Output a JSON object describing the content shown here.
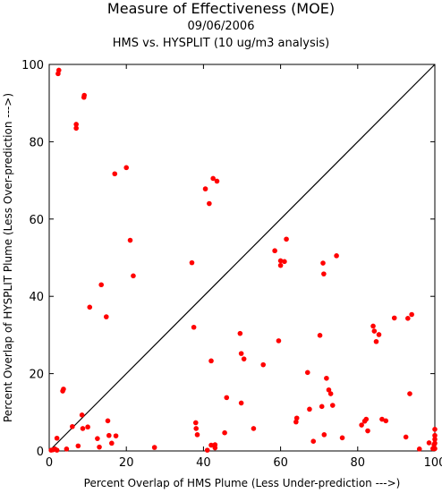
{
  "chart_data": {
    "type": "scatter",
    "title": "Measure of Effectiveness (MOE)",
    "subtitle": "09/06/2006",
    "subtitle2": "HMS vs. HYSPLIT  (10 ug/m3 analysis)",
    "xlabel": "Percent Overlap of HMS Plume (Less Under-prediction --->)",
    "ylabel": "Percent Overlap of HYSPLIT Plume (Less Over-prediction --->)",
    "xlim": [
      0,
      100
    ],
    "ylim": [
      0,
      100
    ],
    "x_ticks": [
      0,
      20,
      40,
      60,
      80,
      100
    ],
    "y_ticks": [
      0,
      20,
      40,
      60,
      80,
      100
    ],
    "grid": false,
    "legend": "none",
    "marker_color": "#ff0000",
    "reference_line": "diagonal y = x",
    "points": [
      {
        "x": 0.5,
        "y": 0.2
      },
      {
        "x": 1,
        "y": 0.3
      },
      {
        "x": 1.5,
        "y": 0.5
      },
      {
        "x": 2,
        "y": 0.2
      },
      {
        "x": 2,
        "y": 3.3
      },
      {
        "x": 2.3,
        "y": 97.6
      },
      {
        "x": 2.5,
        "y": 98.5
      },
      {
        "x": 3.5,
        "y": 15.5
      },
      {
        "x": 3.7,
        "y": 16
      },
      {
        "x": 4.5,
        "y": 0.5
      },
      {
        "x": 6,
        "y": 6.3
      },
      {
        "x": 7,
        "y": 83.5
      },
      {
        "x": 7,
        "y": 84.5
      },
      {
        "x": 7.5,
        "y": 1.3
      },
      {
        "x": 8.5,
        "y": 9.3
      },
      {
        "x": 8.7,
        "y": 5.8
      },
      {
        "x": 9,
        "y": 91.5
      },
      {
        "x": 9.1,
        "y": 92
      },
      {
        "x": 10,
        "y": 6.2
      },
      {
        "x": 10.5,
        "y": 37.2
      },
      {
        "x": 12.5,
        "y": 3.2
      },
      {
        "x": 13.5,
        "y": 43
      },
      {
        "x": 13,
        "y": 1
      },
      {
        "x": 14.8,
        "y": 34.7
      },
      {
        "x": 15.2,
        "y": 7.8
      },
      {
        "x": 15.5,
        "y": 4
      },
      {
        "x": 16.2,
        "y": 2
      },
      {
        "x": 17,
        "y": 71.7
      },
      {
        "x": 17.3,
        "y": 3.9
      },
      {
        "x": 20,
        "y": 73.3
      },
      {
        "x": 21,
        "y": 54.5
      },
      {
        "x": 21.8,
        "y": 45.3
      },
      {
        "x": 27.3,
        "y": 0.9
      },
      {
        "x": 37,
        "y": 48.7
      },
      {
        "x": 37.5,
        "y": 32
      },
      {
        "x": 38,
        "y": 7.3
      },
      {
        "x": 38.1,
        "y": 5.8
      },
      {
        "x": 38.4,
        "y": 4.2
      },
      {
        "x": 40.5,
        "y": 67.8
      },
      {
        "x": 41,
        "y": 0.2
      },
      {
        "x": 41.5,
        "y": 64
      },
      {
        "x": 42,
        "y": 1.5
      },
      {
        "x": 42,
        "y": 23.3
      },
      {
        "x": 42.5,
        "y": 70.5
      },
      {
        "x": 43,
        "y": 0.8
      },
      {
        "x": 43,
        "y": 1.6
      },
      {
        "x": 43.5,
        "y": 69.8
      },
      {
        "x": 45.5,
        "y": 4.7
      },
      {
        "x": 46,
        "y": 13.8
      },
      {
        "x": 49.5,
        "y": 30.4
      },
      {
        "x": 49.8,
        "y": 25.2
      },
      {
        "x": 49.8,
        "y": 12.4
      },
      {
        "x": 50.5,
        "y": 23.8
      },
      {
        "x": 53,
        "y": 5.8
      },
      {
        "x": 55.5,
        "y": 22.3
      },
      {
        "x": 58.5,
        "y": 51.8
      },
      {
        "x": 59.5,
        "y": 28.5
      },
      {
        "x": 60,
        "y": 49.2
      },
      {
        "x": 60,
        "y": 48
      },
      {
        "x": 61,
        "y": 49
      },
      {
        "x": 61.5,
        "y": 54.8
      },
      {
        "x": 64,
        "y": 7.5
      },
      {
        "x": 64.2,
        "y": 8.5
      },
      {
        "x": 67,
        "y": 20.3
      },
      {
        "x": 67.5,
        "y": 10.8
      },
      {
        "x": 68.5,
        "y": 2.5
      },
      {
        "x": 70.2,
        "y": 29.9
      },
      {
        "x": 70.7,
        "y": 11.5
      },
      {
        "x": 71,
        "y": 48.6
      },
      {
        "x": 71.2,
        "y": 45.8
      },
      {
        "x": 71.3,
        "y": 4.2
      },
      {
        "x": 71.9,
        "y": 18.8
      },
      {
        "x": 72.5,
        "y": 15.8
      },
      {
        "x": 73,
        "y": 14.8
      },
      {
        "x": 73.5,
        "y": 11.8
      },
      {
        "x": 74.5,
        "y": 50.5
      },
      {
        "x": 76,
        "y": 3.4
      },
      {
        "x": 81,
        "y": 6.7
      },
      {
        "x": 81.8,
        "y": 7.7
      },
      {
        "x": 82.2,
        "y": 8.2
      },
      {
        "x": 82.6,
        "y": 5.2
      },
      {
        "x": 84,
        "y": 32.3
      },
      {
        "x": 84.3,
        "y": 31
      },
      {
        "x": 84.8,
        "y": 28.3
      },
      {
        "x": 85.5,
        "y": 30.1
      },
      {
        "x": 86.3,
        "y": 8.2
      },
      {
        "x": 87.3,
        "y": 7.8
      },
      {
        "x": 89.5,
        "y": 34.4
      },
      {
        "x": 92.5,
        "y": 3.6
      },
      {
        "x": 93,
        "y": 34.3
      },
      {
        "x": 93.5,
        "y": 14.8
      },
      {
        "x": 94,
        "y": 35.3
      },
      {
        "x": 96,
        "y": 0.5
      },
      {
        "x": 98.5,
        "y": 2.1
      },
      {
        "x": 99.5,
        "y": 0.6
      },
      {
        "x": 99.8,
        "y": 1.6
      },
      {
        "x": 100,
        "y": 5.6
      },
      {
        "x": 100,
        "y": 4
      },
      {
        "x": 100,
        "y": 3
      },
      {
        "x": 100,
        "y": 2
      },
      {
        "x": 100,
        "y": 0.6
      }
    ]
  }
}
